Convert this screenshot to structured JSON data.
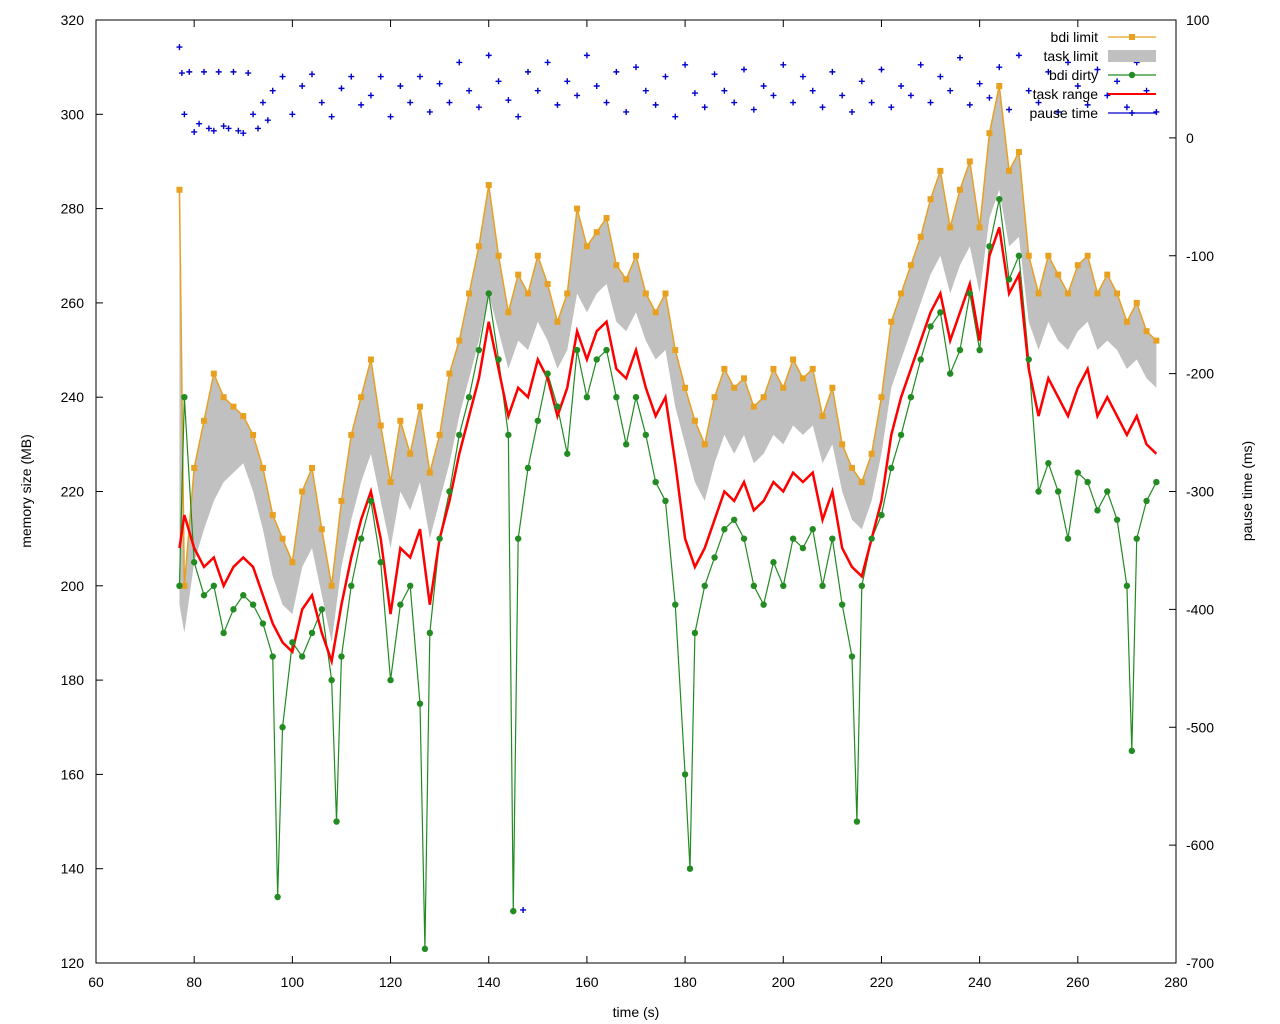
{
  "chart_data": {
    "type": "scatter",
    "title": "",
    "xlabel": "time (s)",
    "ylabel": "memory size (MB)",
    "y2label": "pause time (ms)",
    "xlim": [
      60,
      280
    ],
    "ylim": [
      120,
      320
    ],
    "y2lim": [
      -700,
      100
    ],
    "x_ticks": [
      60,
      80,
      100,
      120,
      140,
      160,
      180,
      200,
      220,
      240,
      260,
      280
    ],
    "y_ticks": [
      120,
      140,
      160,
      180,
      200,
      220,
      240,
      260,
      280,
      300,
      320
    ],
    "y2_ticks": [
      -700,
      -600,
      -500,
      -400,
      -300,
      -200,
      -100,
      0,
      100
    ],
    "grid": false,
    "legend_position": "top-right",
    "colors": {
      "bdi_limit": "#e8a020",
      "task_limit_fill": "#c0c0c0",
      "bdi_dirty": "#228b22",
      "task_range": "#ff0000",
      "pause_time": "#0000cc"
    },
    "series": [
      {
        "name": "bdi limit",
        "axis": "y1",
        "style": "line+square",
        "x": [
          77,
          78,
          80,
          82,
          84,
          86,
          88,
          90,
          92,
          94,
          96,
          98,
          100,
          102,
          104,
          106,
          108,
          110,
          112,
          114,
          116,
          118,
          120,
          122,
          124,
          126,
          128,
          130,
          132,
          134,
          136,
          138,
          140,
          142,
          144,
          146,
          148,
          150,
          152,
          154,
          156,
          158,
          160,
          162,
          164,
          166,
          168,
          170,
          172,
          174,
          176,
          178,
          180,
          182,
          184,
          186,
          188,
          190,
          192,
          194,
          196,
          198,
          200,
          202,
          204,
          206,
          208,
          210,
          212,
          214,
          216,
          218,
          220,
          222,
          224,
          226,
          228,
          230,
          232,
          234,
          236,
          238,
          240,
          242,
          244,
          246,
          248,
          250,
          252,
          254,
          256,
          258,
          260,
          262,
          264,
          266,
          268,
          270,
          272,
          274,
          276
        ],
        "y": [
          284,
          200,
          225,
          235,
          245,
          240,
          238,
          236,
          232,
          225,
          215,
          210,
          205,
          220,
          225,
          212,
          200,
          218,
          232,
          240,
          248,
          234,
          222,
          235,
          228,
          238,
          224,
          232,
          245,
          252,
          262,
          272,
          285,
          270,
          258,
          266,
          262,
          270,
          264,
          256,
          262,
          280,
          272,
          275,
          278,
          268,
          265,
          270,
          262,
          258,
          262,
          250,
          242,
          235,
          230,
          240,
          246,
          242,
          244,
          238,
          240,
          246,
          242,
          248,
          244,
          246,
          236,
          242,
          230,
          225,
          222,
          228,
          240,
          256,
          262,
          268,
          274,
          282,
          288,
          276,
          284,
          290,
          276,
          296,
          306,
          288,
          292,
          270,
          262,
          270,
          266,
          262,
          268,
          270,
          262,
          266,
          262,
          256,
          260,
          254,
          252
        ]
      },
      {
        "name": "task limit",
        "axis": "y1",
        "style": "filled-band",
        "x": [
          77,
          78,
          80,
          82,
          84,
          86,
          88,
          90,
          92,
          94,
          96,
          98,
          100,
          102,
          104,
          106,
          108,
          110,
          112,
          114,
          116,
          118,
          120,
          122,
          124,
          126,
          128,
          130,
          132,
          134,
          136,
          138,
          140,
          142,
          144,
          146,
          148,
          150,
          152,
          154,
          156,
          158,
          160,
          162,
          164,
          166,
          168,
          170,
          172,
          174,
          176,
          178,
          180,
          182,
          184,
          186,
          188,
          190,
          192,
          194,
          196,
          198,
          200,
          202,
          204,
          206,
          208,
          210,
          212,
          214,
          216,
          218,
          220,
          222,
          224,
          226,
          228,
          230,
          232,
          234,
          236,
          238,
          240,
          242,
          244,
          246,
          248,
          250,
          252,
          254,
          256,
          258,
          260,
          262,
          264,
          266,
          268,
          270,
          272,
          274,
          276
        ],
        "y": [
          196,
          190,
          205,
          212,
          218,
          222,
          224,
          226,
          220,
          212,
          202,
          196,
          194,
          204,
          208,
          198,
          188,
          204,
          214,
          222,
          228,
          218,
          208,
          220,
          216,
          222,
          210,
          218,
          226,
          236,
          244,
          252,
          262,
          254,
          246,
          252,
          250,
          256,
          252,
          246,
          250,
          262,
          258,
          262,
          264,
          256,
          254,
          258,
          252,
          248,
          250,
          238,
          230,
          222,
          218,
          226,
          232,
          228,
          232,
          226,
          228,
          232,
          230,
          234,
          232,
          234,
          226,
          230,
          220,
          214,
          212,
          218,
          228,
          242,
          248,
          254,
          260,
          266,
          270,
          262,
          268,
          272,
          262,
          278,
          284,
          272,
          274,
          256,
          250,
          256,
          252,
          250,
          254,
          256,
          250,
          252,
          250,
          246,
          248,
          244,
          242
        ]
      },
      {
        "name": "bdi dirty",
        "axis": "y1",
        "style": "line+circle",
        "x": [
          77,
          78,
          80,
          82,
          84,
          86,
          88,
          90,
          92,
          94,
          96,
          97,
          98,
          100,
          102,
          104,
          106,
          108,
          109,
          110,
          112,
          114,
          116,
          118,
          120,
          122,
          124,
          126,
          127,
          128,
          130,
          132,
          134,
          136,
          138,
          140,
          142,
          144,
          145,
          146,
          148,
          150,
          152,
          154,
          156,
          158,
          160,
          162,
          164,
          166,
          168,
          170,
          172,
          174,
          176,
          178,
          180,
          181,
          182,
          184,
          186,
          188,
          190,
          192,
          194,
          196,
          198,
          200,
          202,
          204,
          206,
          208,
          210,
          212,
          214,
          215,
          216,
          218,
          220,
          222,
          224,
          226,
          228,
          230,
          232,
          234,
          236,
          238,
          240,
          242,
          244,
          246,
          248,
          250,
          252,
          254,
          256,
          258,
          260,
          262,
          264,
          266,
          268,
          270,
          271,
          272,
          274,
          276
        ],
        "y": [
          200,
          240,
          205,
          198,
          200,
          190,
          195,
          198,
          196,
          192,
          185,
          134,
          170,
          188,
          185,
          190,
          195,
          180,
          150,
          185,
          200,
          210,
          218,
          205,
          180,
          196,
          200,
          175,
          123,
          190,
          210,
          220,
          232,
          240,
          250,
          262,
          248,
          232,
          131,
          210,
          225,
          235,
          245,
          238,
          228,
          250,
          240,
          248,
          250,
          240,
          230,
          240,
          232,
          222,
          218,
          196,
          160,
          140,
          190,
          200,
          206,
          212,
          214,
          210,
          200,
          196,
          205,
          200,
          210,
          208,
          212,
          200,
          210,
          196,
          185,
          150,
          200,
          210,
          215,
          225,
          232,
          240,
          248,
          255,
          258,
          245,
          250,
          262,
          250,
          272,
          282,
          265,
          270,
          248,
          220,
          226,
          220,
          210,
          224,
          222,
          216,
          220,
          214,
          200,
          165,
          210,
          218,
          222
        ]
      },
      {
        "name": "task range",
        "axis": "y1",
        "style": "line",
        "x": [
          77,
          78,
          80,
          82,
          84,
          86,
          88,
          90,
          92,
          94,
          96,
          98,
          100,
          102,
          104,
          106,
          108,
          110,
          112,
          114,
          116,
          118,
          120,
          122,
          124,
          126,
          128,
          130,
          132,
          134,
          136,
          138,
          140,
          142,
          144,
          146,
          148,
          150,
          152,
          154,
          156,
          158,
          160,
          162,
          164,
          166,
          168,
          170,
          172,
          174,
          176,
          178,
          180,
          182,
          184,
          186,
          188,
          190,
          192,
          194,
          196,
          198,
          200,
          202,
          204,
          206,
          208,
          210,
          212,
          214,
          216,
          218,
          220,
          222,
          224,
          226,
          228,
          230,
          232,
          234,
          236,
          238,
          240,
          242,
          244,
          246,
          248,
          250,
          252,
          254,
          256,
          258,
          260,
          262,
          264,
          266,
          268,
          270,
          272,
          274,
          276
        ],
        "y": [
          208,
          215,
          208,
          204,
          206,
          200,
          204,
          206,
          204,
          198,
          192,
          188,
          186,
          195,
          198,
          190,
          184,
          196,
          206,
          214,
          220,
          210,
          194,
          208,
          206,
          212,
          196,
          210,
          218,
          228,
          236,
          244,
          256,
          246,
          236,
          242,
          240,
          248,
          244,
          236,
          242,
          254,
          248,
          254,
          256,
          246,
          244,
          250,
          242,
          236,
          240,
          226,
          210,
          204,
          208,
          214,
          220,
          218,
          222,
          216,
          218,
          222,
          220,
          224,
          222,
          224,
          214,
          220,
          208,
          204,
          202,
          210,
          218,
          232,
          240,
          246,
          252,
          258,
          262,
          252,
          258,
          264,
          252,
          270,
          276,
          262,
          266,
          246,
          236,
          244,
          240,
          236,
          242,
          246,
          236,
          240,
          236,
          232,
          236,
          230,
          228
        ]
      },
      {
        "name": "pause time",
        "axis": "y2",
        "style": "plus-scatter",
        "x": [
          77,
          77.5,
          78,
          79,
          80,
          81,
          82,
          83,
          84,
          85,
          86,
          87,
          88,
          89,
          90,
          91,
          92,
          93,
          94,
          95,
          96,
          98,
          100,
          102,
          104,
          106,
          108,
          110,
          112,
          114,
          116,
          118,
          120,
          122,
          124,
          126,
          128,
          130,
          132,
          134,
          136,
          138,
          140,
          142,
          144,
          146,
          147,
          148,
          150,
          152,
          154,
          156,
          158,
          160,
          162,
          164,
          166,
          168,
          170,
          172,
          174,
          176,
          178,
          180,
          182,
          184,
          186,
          188,
          190,
          192,
          194,
          196,
          198,
          200,
          202,
          204,
          206,
          208,
          210,
          212,
          214,
          216,
          218,
          220,
          222,
          224,
          226,
          228,
          230,
          232,
          234,
          236,
          238,
          240,
          242,
          244,
          246,
          248,
          250,
          252,
          254,
          256,
          258,
          260,
          262,
          264,
          266,
          268,
          270,
          272,
          274,
          276
        ],
        "y": [
          77,
          55,
          20,
          56,
          5,
          12,
          56,
          8,
          6,
          56,
          10,
          8,
          56,
          6,
          4,
          55,
          20,
          8,
          30,
          15,
          40,
          52,
          20,
          44,
          54,
          30,
          18,
          42,
          52,
          28,
          36,
          52,
          18,
          44,
          30,
          52,
          22,
          46,
          30,
          64,
          40,
          26,
          70,
          48,
          32,
          18,
          -655,
          56,
          40,
          64,
          28,
          48,
          36,
          70,
          44,
          30,
          56,
          22,
          60,
          40,
          28,
          52,
          18,
          62,
          38,
          26,
          54,
          40,
          30,
          58,
          24,
          44,
          36,
          62,
          30,
          52,
          40,
          26,
          56,
          36,
          22,
          48,
          30,
          58,
          26,
          44,
          36,
          62,
          30,
          52,
          40,
          68,
          28,
          46,
          34,
          60,
          24,
          70,
          40,
          30,
          56,
          22,
          64,
          44,
          28,
          58,
          36,
          48,
          26,
          64,
          40,
          22
        ]
      }
    ]
  }
}
